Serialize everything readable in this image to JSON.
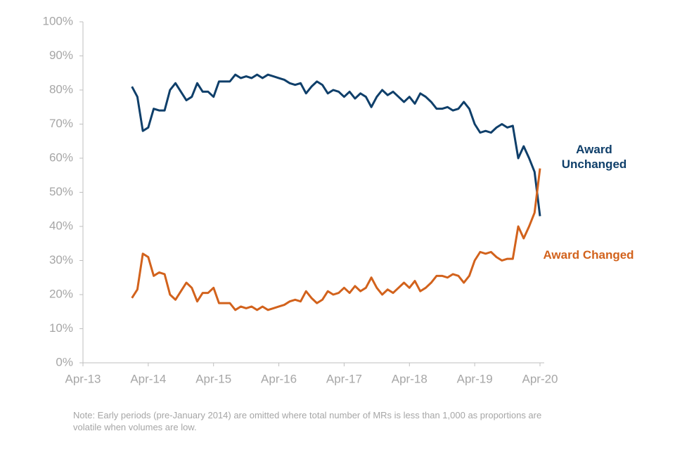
{
  "chart_data": {
    "type": "line",
    "x": [
      "2014-01",
      "2014-02",
      "2014-03",
      "2014-04",
      "2014-05",
      "2014-06",
      "2014-07",
      "2014-08",
      "2014-09",
      "2014-10",
      "2014-11",
      "2014-12",
      "2015-01",
      "2015-02",
      "2015-03",
      "2015-04",
      "2015-05",
      "2015-06",
      "2015-07",
      "2015-08",
      "2015-09",
      "2015-10",
      "2015-11",
      "2015-12",
      "2016-01",
      "2016-02",
      "2016-03",
      "2016-04",
      "2016-05",
      "2016-06",
      "2016-07",
      "2016-08",
      "2016-09",
      "2016-10",
      "2016-11",
      "2016-12",
      "2017-01",
      "2017-02",
      "2017-03",
      "2017-04",
      "2017-05",
      "2017-06",
      "2017-07",
      "2017-08",
      "2017-09",
      "2017-10",
      "2017-11",
      "2017-12",
      "2018-01",
      "2018-02",
      "2018-03",
      "2018-04",
      "2018-05",
      "2018-06",
      "2018-07",
      "2018-08",
      "2018-09",
      "2018-10",
      "2018-11",
      "2018-12",
      "2019-01",
      "2019-02",
      "2019-03",
      "2019-04",
      "2019-05",
      "2019-06",
      "2019-07",
      "2019-08",
      "2019-09",
      "2019-10",
      "2019-11",
      "2019-12",
      "2020-01",
      "2020-02",
      "2020-03",
      "2020-04"
    ],
    "series": [
      {
        "name": "Award Unchanged",
        "color": "#0f3f6a",
        "values": [
          81,
          78,
          68,
          69,
          74.5,
          74,
          74,
          80,
          82,
          79.5,
          77,
          78,
          82,
          79.5,
          79.5,
          78,
          82.5,
          82.5,
          82.5,
          84.5,
          83.5,
          84,
          83.5,
          84.5,
          83.5,
          84.5,
          84,
          83.5,
          83,
          82,
          81.5,
          82,
          79,
          81,
          82.5,
          81.5,
          79,
          80,
          79.5,
          78,
          79.5,
          77.5,
          79,
          78,
          75,
          78,
          80,
          78.5,
          79.5,
          78,
          76.5,
          78,
          76,
          79,
          78,
          76.5,
          74.5,
          74.5,
          75,
          74,
          74.5,
          76.5,
          74.5,
          70,
          67.5,
          68,
          67.5,
          69,
          70,
          69,
          69.5,
          60,
          63.5,
          60,
          56,
          43
        ]
      },
      {
        "name": "Award Changed",
        "color": "#d2621c",
        "values": [
          19,
          21.5,
          32,
          31,
          25.5,
          26.5,
          26,
          20,
          18.5,
          21,
          23.5,
          22,
          18,
          20.5,
          20.5,
          22,
          17.5,
          17.5,
          17.5,
          15.5,
          16.5,
          16,
          16.5,
          15.5,
          16.5,
          15.5,
          16,
          16.5,
          17,
          18,
          18.5,
          18,
          21,
          19,
          17.5,
          18.5,
          21,
          20,
          20.5,
          22,
          20.5,
          22.5,
          21,
          22,
          25,
          22,
          20,
          21.5,
          20.5,
          22,
          23.5,
          22,
          24,
          21,
          22,
          23.5,
          25.5,
          25.5,
          25,
          26,
          25.5,
          23.5,
          25.5,
          30,
          32.5,
          32,
          32.5,
          31,
          30,
          30.5,
          30.5,
          40,
          36.5,
          40,
          44,
          57
        ]
      }
    ],
    "xlim": [
      "2013-04",
      "2020-04"
    ],
    "xticks": [
      {
        "value": "2013-04",
        "label": "Apr-13"
      },
      {
        "value": "2014-04",
        "label": "Apr-14"
      },
      {
        "value": "2015-04",
        "label": "Apr-15"
      },
      {
        "value": "2016-04",
        "label": "Apr-16"
      },
      {
        "value": "2017-04",
        "label": "Apr-17"
      },
      {
        "value": "2018-04",
        "label": "Apr-18"
      },
      {
        "value": "2019-04",
        "label": "Apr-19"
      },
      {
        "value": "2020-04",
        "label": "Apr-20"
      }
    ],
    "ylim": [
      0,
      100
    ],
    "yticks": [
      {
        "value": 0,
        "label": "0%"
      },
      {
        "value": 10,
        "label": "10%"
      },
      {
        "value": 20,
        "label": "20%"
      },
      {
        "value": 30,
        "label": "30%"
      },
      {
        "value": 40,
        "label": "40%"
      },
      {
        "value": 50,
        "label": "50%"
      },
      {
        "value": 60,
        "label": "60%"
      },
      {
        "value": 70,
        "label": "70%"
      },
      {
        "value": 80,
        "label": "80%"
      },
      {
        "value": 90,
        "label": "90%"
      },
      {
        "value": 100,
        "label": "100%"
      }
    ],
    "note": "Note: Early periods (pre-January 2014) are omitted where total number of MRs is less than 1,000 as proportions are volatile when volumes are low."
  }
}
